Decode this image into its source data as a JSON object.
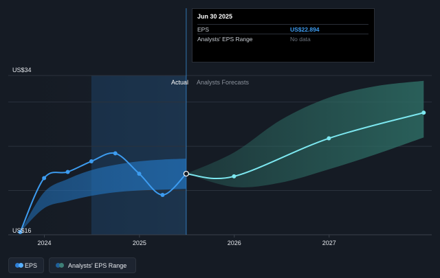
{
  "tooltip": {
    "date": "Jun 30 2025",
    "eps_label": "EPS",
    "eps_value": "US$22.894",
    "range_label": "Analysts' EPS Range",
    "range_value": "No data"
  },
  "section_labels": {
    "actual": "Actual",
    "forecast": "Analysts Forecasts"
  },
  "legend": {
    "eps": "EPS",
    "range": "Analysts' EPS Range"
  },
  "colors": {
    "background": "#151b24",
    "eps_line": "#3d9cf0",
    "forecast_line": "#7de8f0",
    "actual_band": "#2270b8",
    "forecast_band": "#2d6b63"
  },
  "chart_data": {
    "type": "line",
    "y_tick_labels": [
      "US$34",
      "US$16"
    ],
    "ylim": [
      16,
      34
    ],
    "x_tick_labels": [
      "2024",
      "2025",
      "2026",
      "2027"
    ],
    "xlim": [
      "2023-08-15",
      "2028-01-31"
    ],
    "grid": true,
    "legend_position": "bottom-left",
    "divider_date": "2025-06-30",
    "highlight_range": [
      "2024-06-30",
      "2025-06-30"
    ],
    "series": [
      {
        "name": "EPS",
        "x": [
          "2023-09-30",
          "2023-12-31",
          "2024-03-31",
          "2024-06-30",
          "2024-09-30",
          "2024-12-31",
          "2025-03-31",
          "2025-06-30"
        ],
        "values": [
          16.3,
          22.4,
          23.1,
          24.3,
          25.2,
          22.9,
          20.5,
          22.9
        ]
      },
      {
        "name": "EPS",
        "x": [
          "2025-06-30",
          "2025-12-31",
          "2026-12-31",
          "2027-12-31"
        ],
        "values": [
          22.9,
          22.6,
          26.9,
          29.8
        ]
      }
    ],
    "ranges": [
      {
        "name": "Analysts' EPS Range",
        "x": [
          "2023-09-30",
          "2023-12-31",
          "2024-03-31",
          "2024-06-30",
          "2024-09-30",
          "2024-12-31",
          "2025-03-31",
          "2025-06-30"
        ],
        "low": [
          16.3,
          19.0,
          19.8,
          20.4,
          20.8,
          21.0,
          21.1,
          21.2
        ],
        "high": [
          16.3,
          20.8,
          22.3,
          23.3,
          23.9,
          24.3,
          24.5,
          24.6
        ]
      },
      {
        "name": "Analysts' EPS Range",
        "x": [
          "2025-06-30",
          "2025-12-31",
          "2026-06-30",
          "2026-12-31",
          "2027-06-30",
          "2027-12-31"
        ],
        "low": [
          22.9,
          21.4,
          21.9,
          23.4,
          25.1,
          27.0
        ],
        "high": [
          22.9,
          25.3,
          29.0,
          31.5,
          32.8,
          33.4
        ]
      }
    ]
  }
}
